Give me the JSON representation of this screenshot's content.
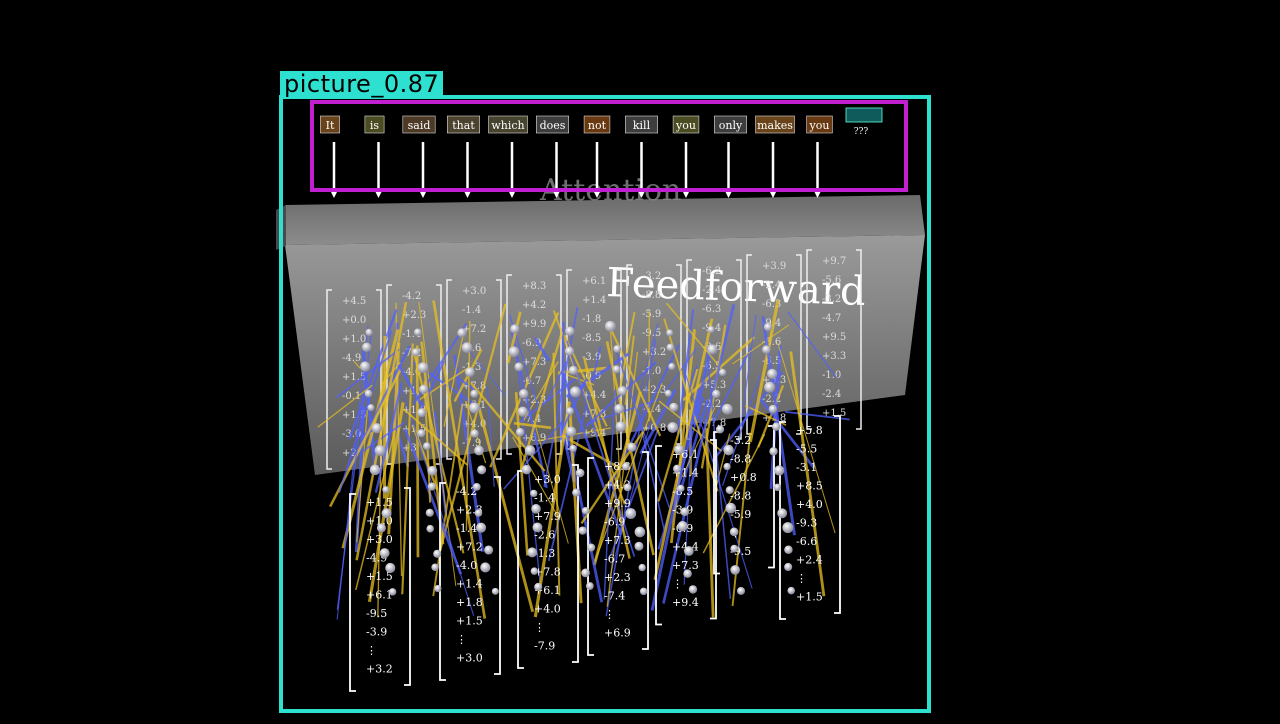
{
  "detections": {
    "outer": {
      "label": "picture_0.87",
      "color": "#2ee0cf"
    },
    "inner": {
      "color": "#c020d0"
    }
  },
  "scene": {
    "block_title": "Feedforward",
    "ghost_title": "Attention",
    "tokens": [
      "It",
      "is",
      "said",
      "that",
      "which",
      "does",
      "not",
      "kill",
      "you",
      "only",
      "makes",
      "you"
    ],
    "query_token": "???",
    "back_vectors": [
      [
        "+4.5",
        "+0.0",
        "+1.0",
        "-4.9",
        "+1.5",
        "-0.1",
        "+1.5",
        "-3.0",
        "+2"
      ],
      [
        "-4.2",
        "+2.3",
        "-1.4",
        "-7.2",
        "-4.0",
        "+1.4",
        "+1.8",
        "+1.5",
        "+3"
      ],
      [
        "+3.0",
        "-1.4",
        "+7.2",
        "-2.6",
        "-1.3",
        "+7.8",
        "+6.1",
        "+4.0",
        "-7.9"
      ],
      [
        "+8.3",
        "+4.2",
        "+9.9",
        "-6.9",
        "+7.3",
        "-6.7",
        "+2.3",
        "-7.4",
        "+6.9"
      ],
      [
        "+6.1",
        "+1.4",
        "-1.8",
        "-8.5",
        "-3.9",
        "-0.9",
        "+4.4",
        "+7.3",
        "+9.4"
      ],
      [
        "-3.2",
        "-8.8",
        "-5.9",
        "-9.5",
        "+3.2",
        "-1.0",
        "+2.3",
        "-1.4",
        "+0.8"
      ],
      [
        "-6.2",
        "-2.4",
        "-6.3",
        "-9.4",
        "-8.6",
        "-6.5",
        "+5.3",
        "-2.2",
        "+7.8"
      ],
      [
        "+3.9",
        "-2.4",
        "-6.3",
        "-9.4",
        "-8.6",
        "-6.5",
        "+5.3",
        "-2.2",
        "+7.8"
      ],
      [
        "+9.7",
        "-5.6",
        "-3.2",
        "-4.7",
        "+9.5",
        "+3.3",
        "-1.0",
        "-2.4",
        "+1.5"
      ]
    ],
    "front_vectors": [
      [
        "+1.5",
        "+1.0",
        "+3.0",
        "-4.9",
        "+1.5",
        "+6.1",
        "-9.5",
        "-3.9",
        "⋮",
        "+3.2"
      ],
      [
        "-4.2",
        "+2.3",
        "-1.4",
        "+7.2",
        "-4.0",
        "+1.4",
        "+1.8",
        "+1.5",
        "⋮",
        "+3.0"
      ],
      [
        "+3.0",
        "-1.4",
        "+7.9",
        "-2.6",
        "-1.3",
        "+7.8",
        "+6.1",
        "+4.0",
        "⋮",
        "-7.9"
      ],
      [
        "+8.3",
        "+4.2",
        "+9.9",
        "-6.9",
        "+7.3",
        "-6.7",
        "+2.3",
        "-7.4",
        "⋮",
        "+6.9"
      ],
      [
        "+6.1",
        "+1.4",
        "-8.5",
        "-3.9",
        "-0.9",
        "+4.4",
        "+7.3",
        "⋮",
        "+9.4"
      ],
      [
        "-3.2",
        "-8.8",
        "+0.8",
        "-8.8",
        "-5.9",
        "⋮",
        "-9.5"
      ],
      [
        "+5.8",
        "-5.5",
        "-3.1",
        "+8.5",
        "+4.0",
        "-9.3",
        "-6.6",
        "+2.4",
        "⋮",
        "+1.5"
      ]
    ]
  }
}
